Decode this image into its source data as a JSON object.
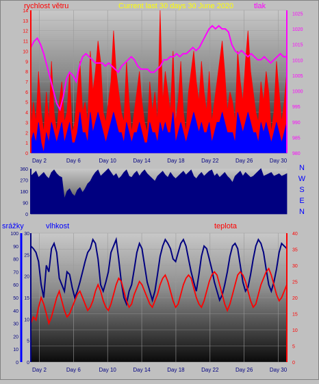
{
  "colors": {
    "background": "#c0c0c0",
    "wind": "#ff0000",
    "gust_low": "#0000ff",
    "pressure": "#ff00ff",
    "title": "#ffff00",
    "direction": "#000080",
    "humidity": "#000080",
    "temperature": "#ff0000",
    "rain_axis": "#0000ff",
    "temp_axis": "#ff0000",
    "humid_axis": "#000080",
    "tick_text": "#000080"
  },
  "chart_data": [
    {
      "id": "wind-pressure",
      "type": "line",
      "title": "Current last 30 days 30 June 2020",
      "left_label": "rychlost větru",
      "right_label": "tlak",
      "x_tick_labels": [
        "Day 2",
        "Day 6",
        "Day 10",
        "Day 14",
        "Day 18",
        "Day 22",
        "Day 26",
        "Day 30"
      ],
      "x_tick_days": [
        2,
        6,
        10,
        14,
        18,
        22,
        26,
        30
      ],
      "xlim": [
        1,
        31
      ],
      "left_ylim": [
        0,
        14
      ],
      "left_ticks": [
        0,
        1,
        2,
        3,
        4,
        5,
        6,
        7,
        8,
        9,
        10,
        11,
        12,
        13,
        14
      ],
      "right_ylim": [
        980,
        1026
      ],
      "right_ticks": [
        980,
        985,
        990,
        995,
        1000,
        1005,
        1010,
        1015,
        1020,
        1025
      ],
      "series": [
        {
          "key": "wind",
          "values": [
            2,
            5,
            3,
            8,
            4,
            2,
            6,
            3,
            9,
            4,
            2,
            5,
            7,
            3,
            4,
            8,
            2,
            3,
            6,
            9,
            4,
            5,
            3,
            10,
            6,
            8,
            11,
            9,
            4,
            3,
            5,
            7,
            12,
            8,
            6,
            4,
            3,
            9,
            5,
            2,
            4,
            6,
            8,
            5,
            3,
            2,
            7,
            4,
            6,
            3,
            14,
            5,
            8,
            6,
            4,
            10,
            3,
            5,
            9,
            4,
            2,
            6,
            8,
            10,
            7,
            5,
            9,
            6,
            4,
            8,
            3,
            5,
            7,
            9,
            11,
            8,
            4,
            6,
            5,
            3,
            10,
            7,
            5,
            9,
            12,
            8,
            6,
            4,
            3,
            7,
            5,
            8,
            6,
            2,
            4,
            9,
            6,
            3,
            5,
            8
          ]
        },
        {
          "key": "gust_low",
          "values": [
            1,
            2,
            1,
            3,
            1,
            0,
            2,
            1,
            3,
            2,
            1,
            2,
            3,
            1,
            2,
            3,
            1,
            1,
            2,
            4,
            2,
            2,
            1,
            4,
            2,
            3,
            4,
            3,
            2,
            1,
            2,
            3,
            4,
            3,
            2,
            2,
            1,
            3,
            2,
            1,
            2,
            2,
            3,
            2,
            1,
            1,
            3,
            2,
            2,
            1,
            3,
            2,
            3,
            2,
            2,
            4,
            1,
            2,
            3,
            2,
            1,
            2,
            3,
            4,
            3,
            2,
            3,
            2,
            2,
            3,
            1,
            2,
            3,
            3,
            4,
            3,
            2,
            2,
            2,
            1,
            4,
            3,
            2,
            3,
            4,
            3,
            2,
            2,
            1,
            3,
            2,
            3,
            2,
            1,
            2,
            3,
            2,
            1,
            2,
            3
          ]
        },
        {
          "key": "pressure",
          "values": [
            1014,
            1016,
            1017,
            1015,
            1012,
            1008,
            1004,
            1000,
            996,
            994,
            998,
            1004,
            1006,
            1005,
            1003,
            1008,
            1011,
            1012,
            1011,
            1010,
            1009,
            1009,
            1009,
            1008,
            1009,
            1008,
            1007,
            1006,
            1008,
            1009,
            1010,
            1011,
            1010,
            1008,
            1007,
            1007,
            1007,
            1006,
            1006,
            1007,
            1008,
            1010,
            1010,
            1011,
            1011,
            1012,
            1011,
            1012,
            1012,
            1013,
            1014,
            1013,
            1014,
            1016,
            1018,
            1020,
            1021,
            1020,
            1021,
            1020,
            1020,
            1019,
            1015,
            1013,
            1012,
            1013,
            1012,
            1011,
            1012,
            1011,
            1010,
            1010,
            1011,
            1010,
            1009,
            1010,
            1011,
            1012,
            1011,
            1011
          ]
        }
      ]
    },
    {
      "id": "wind-direction",
      "type": "area",
      "yticks": [
        0,
        90,
        180,
        270,
        360
      ],
      "ylim": [
        0,
        360
      ],
      "compass": [
        "N",
        "W",
        "S",
        "E",
        "N"
      ],
      "values": [
        300,
        320,
        340,
        290,
        310,
        330,
        300,
        280,
        330,
        350,
        320,
        300,
        290,
        120,
        180,
        200,
        160,
        140,
        190,
        210,
        170,
        200,
        240,
        260,
        300,
        330,
        350,
        300,
        320,
        340,
        360,
        330,
        300,
        320,
        280,
        300,
        330,
        350,
        300,
        290,
        320,
        340,
        300,
        330,
        350,
        320,
        300,
        280,
        260,
        300,
        320,
        340,
        310,
        290,
        330,
        300,
        280,
        300,
        320,
        340,
        310,
        330,
        350,
        300,
        280,
        310,
        330,
        300,
        320,
        340,
        350,
        300,
        320,
        290,
        310,
        330,
        300,
        280,
        250,
        300,
        320,
        340,
        300,
        330,
        310,
        290,
        300,
        320,
        340,
        360,
        300,
        310,
        320,
        330,
        300,
        310,
        320,
        300,
        310,
        320
      ]
    },
    {
      "id": "rain-humidity-temp",
      "type": "line",
      "left_label": "srážky",
      "mid_label": "vlhkost",
      "right_label": "teplota",
      "x_tick_labels": [
        "Day 2",
        "Day 6",
        "Day 10",
        "Day 14",
        "Day 18",
        "Day 22",
        "Day 26",
        "Day 30"
      ],
      "x_tick_days": [
        2,
        6,
        10,
        14,
        18,
        22,
        26,
        30
      ],
      "xlim": [
        1,
        31
      ],
      "rain_ylim": [
        0,
        100
      ],
      "rain_ticks": [
        0,
        10,
        20,
        30,
        40,
        50,
        60,
        70,
        80,
        90,
        100
      ],
      "humid_ylim": [
        0,
        30
      ],
      "humid_ticks": [
        0,
        5,
        10,
        15,
        20,
        25,
        30
      ],
      "temp_ylim": [
        0,
        40
      ],
      "temp_ticks": [
        0,
        5,
        10,
        15,
        20,
        25,
        30,
        35,
        40
      ],
      "series": [
        {
          "key": "humidity",
          "values": [
            90,
            88,
            85,
            78,
            60,
            50,
            75,
            70,
            88,
            92,
            85,
            65,
            60,
            55,
            70,
            68,
            58,
            50,
            55,
            62,
            70,
            78,
            85,
            88,
            95,
            92,
            80,
            60,
            55,
            62,
            70,
            85,
            90,
            95,
            80,
            62,
            50,
            45,
            55,
            60,
            72,
            85,
            92,
            88,
            75,
            62,
            55,
            48,
            55,
            68,
            82,
            90,
            95,
            92,
            88,
            80,
            78,
            85,
            92,
            95,
            90,
            80,
            70,
            62,
            55,
            68,
            82,
            90,
            88,
            80,
            72,
            62,
            55,
            48,
            52,
            60,
            70,
            82,
            90,
            92,
            88,
            75,
            62,
            55,
            58,
            68,
            80,
            90,
            95,
            92,
            85,
            72,
            60,
            55,
            62,
            72,
            85,
            92,
            90,
            88
          ]
        },
        {
          "key": "temperature",
          "values": [
            12,
            14,
            13,
            17,
            20,
            18,
            15,
            12,
            14,
            17,
            20,
            22,
            19,
            16,
            14,
            15,
            17,
            19,
            21,
            22,
            20,
            18,
            16,
            17,
            19,
            22,
            24,
            22,
            19,
            17,
            16,
            18,
            21,
            24,
            26,
            25,
            22,
            19,
            17,
            18,
            21,
            23,
            25,
            24,
            22,
            20,
            18,
            17,
            19,
            21,
            24,
            26,
            27,
            25,
            22,
            19,
            17,
            18,
            21,
            24,
            26,
            27,
            26,
            23,
            20,
            18,
            17,
            19,
            22,
            25,
            27,
            28,
            27,
            24,
            21,
            18,
            16,
            18,
            21,
            24,
            27,
            28,
            27,
            25,
            22,
            19,
            17,
            18,
            21,
            24,
            26,
            28,
            29,
            27,
            24,
            21,
            19,
            20,
            22,
            24
          ]
        },
        {
          "key": "rain",
          "values": [
            0,
            0,
            0,
            0,
            0,
            0,
            0,
            0,
            0,
            0,
            0,
            0,
            0,
            0,
            0,
            0,
            0,
            0,
            0,
            0,
            0,
            0,
            0,
            0,
            0,
            0,
            0,
            0,
            0,
            0,
            0,
            0,
            0,
            0,
            0,
            0,
            0,
            0,
            0,
            0,
            0,
            0,
            0,
            0,
            0,
            0,
            0,
            0,
            0,
            0,
            0,
            0,
            0,
            0,
            0,
            0,
            0,
            0,
            0,
            0,
            0,
            0,
            0,
            0,
            0,
            0,
            0,
            0,
            0,
            0,
            0,
            0,
            0,
            0,
            0,
            0,
            0,
            0,
            0,
            0,
            0,
            0,
            0,
            0,
            0,
            0,
            0,
            0,
            0,
            0,
            0,
            0,
            0,
            0,
            0,
            0,
            0,
            0,
            0,
            0
          ]
        }
      ]
    }
  ]
}
